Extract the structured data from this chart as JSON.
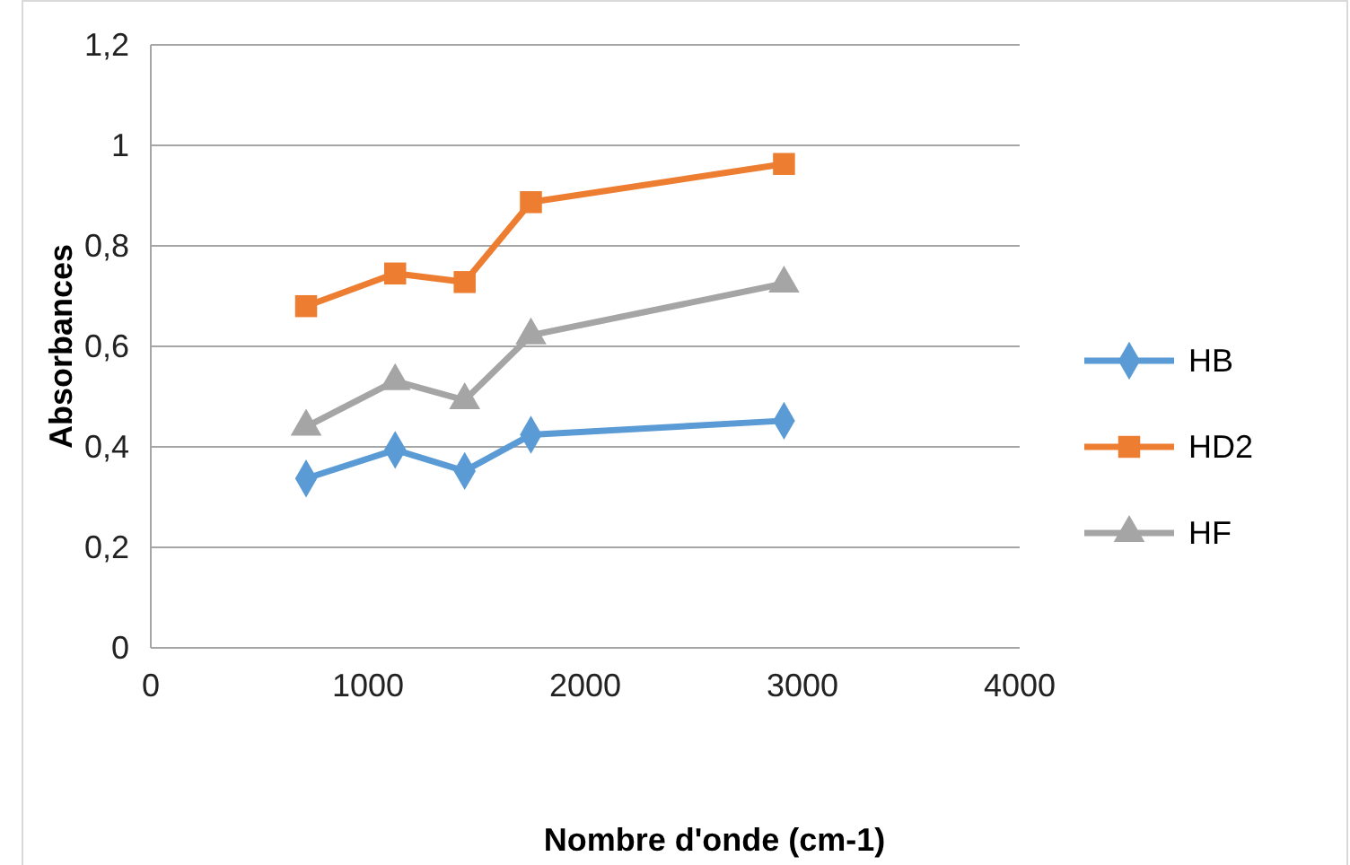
{
  "chart_data": {
    "type": "line",
    "xlabel": "Nombre d'onde (cm-1)",
    "ylabel": "Absorbances",
    "x": [
      715,
      1125,
      1445,
      1750,
      2915
    ],
    "series": [
      {
        "name": "HB",
        "color": "#5b9bd5",
        "marker": "diamond",
        "values": [
          0.337,
          0.394,
          0.352,
          0.424,
          0.452
        ]
      },
      {
        "name": "HD2",
        "color": "#ed7d31",
        "marker": "square",
        "values": [
          0.68,
          0.745,
          0.728,
          0.887,
          0.963
        ]
      },
      {
        "name": "HF",
        "color": "#a5a5a5",
        "marker": "triangle",
        "values": [
          0.44,
          0.531,
          0.493,
          0.622,
          0.725
        ]
      }
    ],
    "xlim": [
      0,
      4000
    ],
    "xticks": [
      0,
      1000,
      2000,
      3000,
      4000
    ],
    "ylim": [
      0,
      1.2
    ],
    "yticks": [
      0,
      {
        "value": 0.2,
        "label": "0,2"
      },
      {
        "value": 0.4,
        "label": "0,4"
      },
      {
        "value": 0.6,
        "label": "0,6"
      },
      {
        "value": 0.8,
        "label": "0,8"
      },
      1,
      {
        "value": 1.2,
        "label": "1,2"
      }
    ],
    "grid": "y",
    "legend": "right",
    "line_style": "solid"
  }
}
